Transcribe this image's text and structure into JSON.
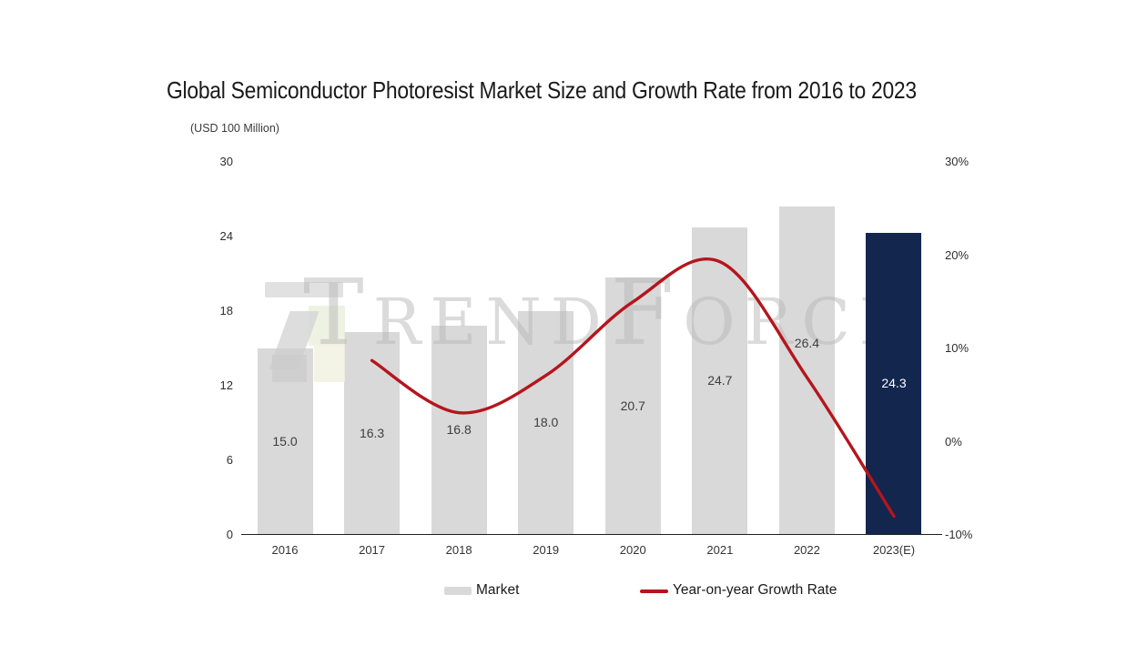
{
  "title": "Global Semiconductor Photoresist Market Size and Growth Rate from 2016 to 2023",
  "unit_label": "(USD 100 Million)",
  "watermark": {
    "text": "TrendForce"
  },
  "legend": {
    "items": [
      {
        "label": "Market"
      },
      {
        "label": "Year-on-year Growth Rate"
      }
    ],
    "position": "bottom"
  },
  "left_axis": {
    "labels": [
      "30",
      "24",
      "18",
      "12",
      "6",
      "0"
    ],
    "values": [
      30,
      24,
      18,
      12,
      6,
      0
    ],
    "min": 0,
    "max": 30
  },
  "right_axis": {
    "labels": [
      "30%",
      "20%",
      "10%",
      "0%",
      "-10%"
    ],
    "values": [
      30,
      20,
      10,
      0,
      -10
    ],
    "min": -10,
    "max": 30
  },
  "colors": {
    "bar": "#d9d9d9",
    "bar_highlight": "#12264e",
    "line": "#b5151d",
    "value_label": "#3d3d3d",
    "value_label_highlight": "#ffffff",
    "axis_line": "#1f1f1f",
    "title": "#1a1a1a",
    "watermark": "#b9b9b9"
  },
  "chart_data": {
    "type": "bar",
    "title": "Global Semiconductor Photoresist Market Size and Growth Rate from 2016 to 2023",
    "xlabel": "",
    "ylabel": "(USD 100 Million)",
    "categories": [
      "2016",
      "2017",
      "2018",
      "2019",
      "2020",
      "2021",
      "2022",
      "2023(E)"
    ],
    "series": [
      {
        "name": "Market",
        "type": "bar",
        "axis": "left",
        "values": [
          15.0,
          16.3,
          16.8,
          18.0,
          20.7,
          24.7,
          26.4,
          24.3
        ],
        "labels": [
          "15.0",
          "16.3",
          "16.8",
          "18.0",
          "20.7",
          "24.7",
          "26.4",
          "24.3"
        ],
        "highlight_index": 7
      },
      {
        "name": "Year-on-year Growth Rate",
        "type": "line",
        "axis": "right",
        "values": [
          null,
          8.7,
          3.1,
          7.1,
          15.0,
          19.3,
          6.9,
          -8.0
        ],
        "unit": "%"
      }
    ],
    "left_ylim": [
      0,
      30
    ],
    "right_ylim": [
      -10,
      30
    ],
    "grid": false,
    "legend_position": "bottom"
  }
}
